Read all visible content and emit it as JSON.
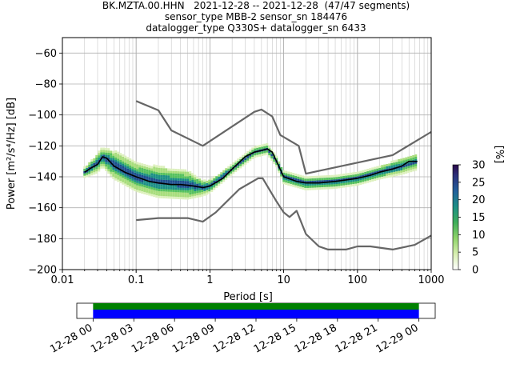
{
  "chart_data": {
    "type": "heatmap",
    "title_lines": [
      "BK.MZTA.00.HHN   2021-12-28 -- 2021-12-28  (47/47 segments)",
      "sensor_type MBB-2 sensor_sn 184476",
      "datalogger_type Q330S+ datalogger_sn 6433"
    ],
    "xlabel": "Period [s]",
    "ylabel": "Power [m²/s⁴/Hz] [dB]",
    "x_scale": "log",
    "xlim": [
      0.01,
      1000
    ],
    "ylim": [
      -200,
      -50
    ],
    "x_ticks": [
      {
        "value": 0.01,
        "label": "0.01"
      },
      {
        "value": 0.1,
        "label": "0.1"
      },
      {
        "value": 1,
        "label": "1"
      },
      {
        "value": 10,
        "label": "10"
      },
      {
        "value": 100,
        "label": "100"
      },
      {
        "value": 1000,
        "label": "1000"
      }
    ],
    "y_ticks": [
      -200,
      -180,
      -160,
      -140,
      -120,
      -100,
      -80,
      -60
    ],
    "grid": true,
    "colorbar": {
      "label": "[%]",
      "min": 0,
      "max": 30,
      "ticks": [
        0,
        5,
        10,
        15,
        20,
        25,
        30
      ]
    },
    "series": [
      {
        "role": "mode",
        "color": "#000000",
        "points": [
          [
            0.02,
            -137
          ],
          [
            0.025,
            -134
          ],
          [
            0.03,
            -132
          ],
          [
            0.035,
            -127
          ],
          [
            0.04,
            -128
          ],
          [
            0.05,
            -133
          ],
          [
            0.07,
            -137
          ],
          [
            0.1,
            -140
          ],
          [
            0.15,
            -143
          ],
          [
            0.2,
            -144
          ],
          [
            0.3,
            -145
          ],
          [
            0.4,
            -145
          ],
          [
            0.5,
            -145.5
          ],
          [
            0.6,
            -146
          ],
          [
            0.8,
            -147
          ],
          [
            1,
            -146
          ],
          [
            1.5,
            -141
          ],
          [
            2,
            -135
          ],
          [
            3,
            -127
          ],
          [
            4,
            -124
          ],
          [
            5,
            -123
          ],
          [
            6,
            -122
          ],
          [
            7,
            -124
          ],
          [
            8,
            -130
          ],
          [
            10,
            -140
          ],
          [
            15,
            -143
          ],
          [
            20,
            -144
          ],
          [
            30,
            -144
          ],
          [
            50,
            -143
          ],
          [
            70,
            -142
          ],
          [
            100,
            -141
          ],
          [
            150,
            -139
          ],
          [
            200,
            -137
          ],
          [
            300,
            -135
          ],
          [
            400,
            -133
          ],
          [
            500,
            -130
          ],
          [
            650,
            -130
          ]
        ]
      },
      {
        "role": "nhnm",
        "color": "#666666",
        "points": [
          [
            0.1,
            -91
          ],
          [
            0.2,
            -97
          ],
          [
            0.3,
            -110
          ],
          [
            0.8,
            -120
          ],
          [
            4,
            -98
          ],
          [
            5,
            -96.5
          ],
          [
            7,
            -101
          ],
          [
            9,
            -113
          ],
          [
            16,
            -120
          ],
          [
            20,
            -138
          ],
          [
            300,
            -126
          ],
          [
            1000,
            -111
          ]
        ]
      },
      {
        "role": "nlnm",
        "color": "#666666",
        "points": [
          [
            0.1,
            -168
          ],
          [
            0.2,
            -166.7
          ],
          [
            0.5,
            -166.7
          ],
          [
            0.8,
            -169
          ],
          [
            1.2,
            -163
          ],
          [
            2.5,
            -148
          ],
          [
            4.5,
            -141
          ],
          [
            5.2,
            -141
          ],
          [
            8,
            -156
          ],
          [
            10,
            -163
          ],
          [
            12,
            -166
          ],
          [
            15,
            -162
          ],
          [
            20,
            -177
          ],
          [
            30,
            -185
          ],
          [
            40,
            -187
          ],
          [
            70,
            -187
          ],
          [
            100,
            -185
          ],
          [
            150,
            -185
          ],
          [
            300,
            -187
          ],
          [
            600,
            -184
          ],
          [
            1000,
            -178
          ]
        ]
      }
    ],
    "spread": {
      "points": [
        [
          0.02,
          -137,
          3
        ],
        [
          0.03,
          -131,
          6
        ],
        [
          0.035,
          -127,
          6
        ],
        [
          0.05,
          -132,
          9
        ],
        [
          0.1,
          -140,
          9
        ],
        [
          0.2,
          -143,
          10
        ],
        [
          0.5,
          -145,
          9
        ],
        [
          0.8,
          -147,
          5
        ],
        [
          1,
          -146,
          4
        ],
        [
          2,
          -135,
          3
        ],
        [
          4,
          -124,
          3
        ],
        [
          6,
          -122,
          3
        ],
        [
          8,
          -130,
          3
        ],
        [
          10,
          -140,
          4
        ],
        [
          20,
          -144,
          4
        ],
        [
          50,
          -143,
          4
        ],
        [
          100,
          -141,
          4
        ],
        [
          200,
          -137,
          4
        ],
        [
          400,
          -133,
          5
        ],
        [
          650,
          -130,
          5
        ]
      ]
    },
    "time_axis": {
      "tick_labels": [
        "12-28 00",
        "12-28 03",
        "12-28 06",
        "12-28 09",
        "12-28 12",
        "12-28 15",
        "12-28 18",
        "12-28 21",
        "12-29 00"
      ],
      "data_start_hour": 0,
      "data_end_hour": 24,
      "axis_start_hour": -1.2,
      "axis_end_hour": 25.2,
      "upper_band_color": "#008000",
      "lower_band_color": "#0000ff"
    }
  }
}
